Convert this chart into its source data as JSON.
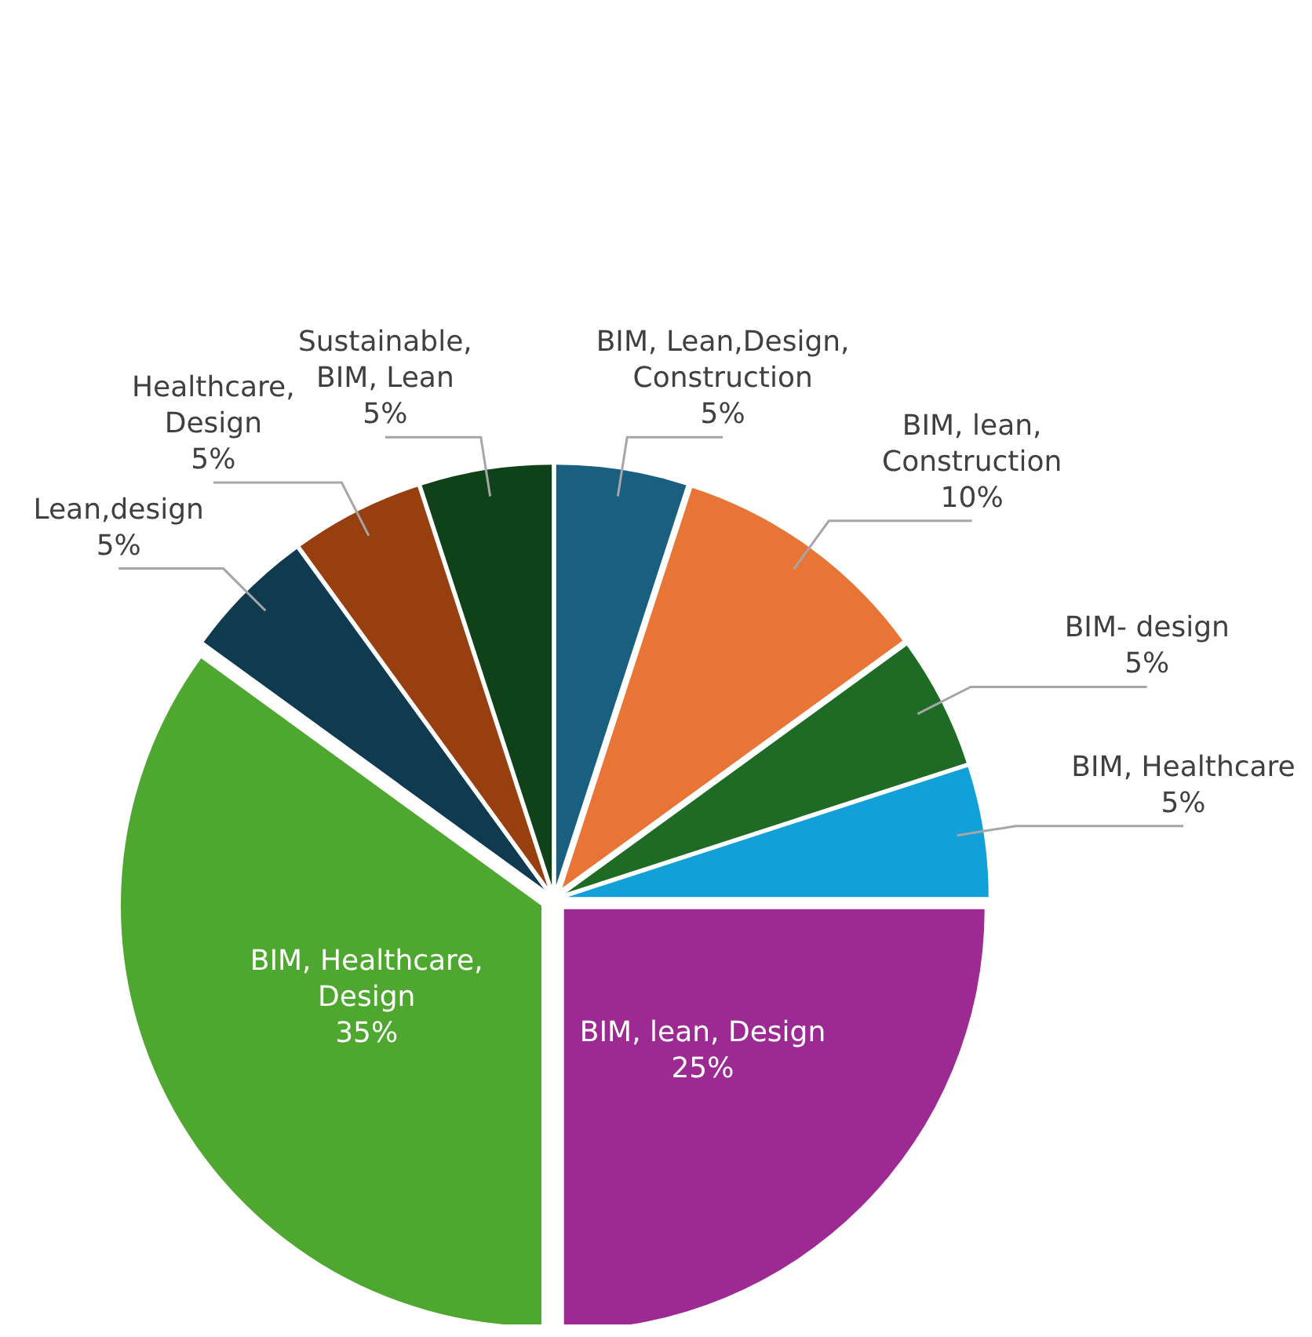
{
  "chart_data": {
    "type": "pie",
    "categories": [
      "BIM, Lean,Design, Construction",
      "BIM, lean, Construction",
      "BIM- design",
      "BIM, Healthcare",
      "BIM, lean, Design",
      "BIM, Healthcare, Design",
      "Lean,design",
      "Healthcare, Design",
      "Sustainable, BIM, Lean"
    ],
    "values": [
      5,
      10,
      5,
      5,
      25,
      35,
      5,
      5,
      5
    ],
    "colors": [
      "#185f80",
      "#e87535",
      "#1e6b25",
      "#12a0d8",
      "#9c2a92",
      "#4ea72e",
      "#0f3a50",
      "#983f10",
      "#0f4218"
    ],
    "value_labels": [
      "5%",
      "10%",
      "5%",
      "5%",
      "25%",
      "35%",
      "5%",
      "5%",
      "5%"
    ]
  }
}
